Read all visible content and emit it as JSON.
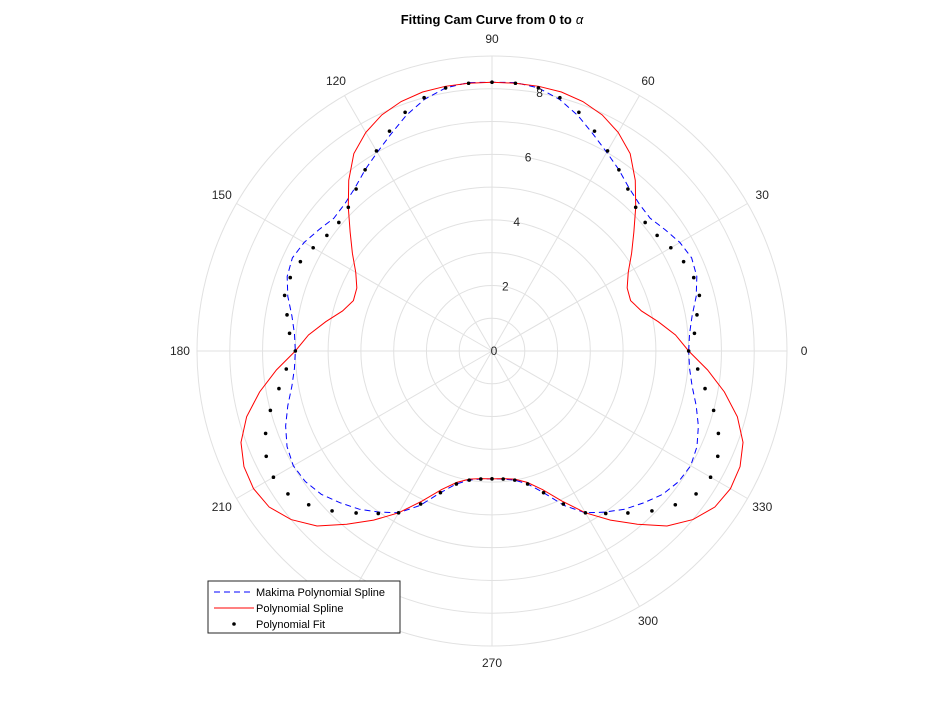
{
  "chart_data": {
    "type": "polar-line",
    "title": "Fitting Cam Curve from 0 to",
    "title_symbol": "α",
    "theta_ticks": [
      "0",
      "30",
      "60",
      "90",
      "120",
      "150",
      "180",
      "210",
      "240",
      "270",
      "300",
      "330"
    ],
    "r_ticks": [
      "0",
      "2",
      "4",
      "6",
      "8"
    ],
    "rlim": [
      0,
      9
    ],
    "theta_grid_step_deg": 30,
    "grid": true,
    "legend_position": "bottom-left",
    "control_points": [
      {
        "theta_deg": 0,
        "r": 6.0
      },
      {
        "theta_deg": 30,
        "r": 6.0
      },
      {
        "theta_deg": 60,
        "r": 6.0
      },
      {
        "theta_deg": 90,
        "r": 8.2
      },
      {
        "theta_deg": 120,
        "r": 6.0
      },
      {
        "theta_deg": 150,
        "r": 6.0
      },
      {
        "theta_deg": 180,
        "r": 6.0
      },
      {
        "theta_deg": 210,
        "r": 6.0
      },
      {
        "theta_deg": 240,
        "r": 6.0
      },
      {
        "theta_deg": 270,
        "r": 3.9
      },
      {
        "theta_deg": 300,
        "r": 6.0
      },
      {
        "theta_deg": 330,
        "r": 6.0
      }
    ],
    "series": [
      {
        "name": "Makima Polynomial Spline",
        "style": "dashed",
        "color": "#0000ff",
        "points": [
          [
            0,
            6.0
          ],
          [
            5,
            6.05
          ],
          [
            10,
            6.2
          ],
          [
            15,
            6.45
          ],
          [
            20,
            6.65
          ],
          [
            25,
            6.72
          ],
          [
            30,
            6.62
          ],
          [
            35,
            6.45
          ],
          [
            40,
            6.3
          ],
          [
            45,
            6.35
          ],
          [
            50,
            6.5
          ],
          [
            55,
            6.75
          ],
          [
            60,
            7.0
          ],
          [
            65,
            7.3
          ],
          [
            70,
            7.65
          ],
          [
            75,
            7.95
          ],
          [
            80,
            8.15
          ],
          [
            85,
            8.22
          ],
          [
            90,
            8.2
          ],
          [
            95,
            8.22
          ],
          [
            100,
            8.15
          ],
          [
            105,
            7.95
          ],
          [
            110,
            7.65
          ],
          [
            115,
            7.3
          ],
          [
            120,
            7.0
          ],
          [
            125,
            6.75
          ],
          [
            130,
            6.5
          ],
          [
            135,
            6.35
          ],
          [
            140,
            6.3
          ],
          [
            145,
            6.45
          ],
          [
            150,
            6.62
          ],
          [
            155,
            6.72
          ],
          [
            160,
            6.65
          ],
          [
            165,
            6.45
          ],
          [
            170,
            6.2
          ],
          [
            175,
            6.05
          ],
          [
            180,
            6.0
          ],
          [
            185,
            6.05
          ],
          [
            190,
            6.2
          ],
          [
            195,
            6.45
          ],
          [
            200,
            6.7
          ],
          [
            205,
            6.9
          ],
          [
            210,
            7.0
          ],
          [
            215,
            6.95
          ],
          [
            220,
            6.8
          ],
          [
            225,
            6.55
          ],
          [
            230,
            6.3
          ],
          [
            235,
            6.0
          ],
          [
            240,
            5.7
          ],
          [
            245,
            5.2
          ],
          [
            250,
            4.6
          ],
          [
            255,
            4.2
          ],
          [
            260,
            4.0
          ],
          [
            265,
            3.92
          ],
          [
            270,
            3.9
          ],
          [
            275,
            3.92
          ],
          [
            280,
            4.0
          ],
          [
            285,
            4.2
          ],
          [
            290,
            4.6
          ],
          [
            295,
            5.2
          ],
          [
            300,
            5.7
          ],
          [
            305,
            6.0
          ],
          [
            310,
            6.3
          ],
          [
            315,
            6.55
          ],
          [
            320,
            6.8
          ],
          [
            325,
            6.95
          ],
          [
            330,
            7.0
          ],
          [
            335,
            6.9
          ],
          [
            340,
            6.7
          ],
          [
            345,
            6.45
          ],
          [
            350,
            6.2
          ],
          [
            355,
            6.05
          ],
          [
            360,
            6.0
          ]
        ]
      },
      {
        "name": "Polynomial Spline",
        "style": "solid",
        "color": "#ff0000",
        "points": [
          [
            0,
            6.0
          ],
          [
            5,
            5.62
          ],
          [
            10,
            5.15
          ],
          [
            15,
            4.72
          ],
          [
            20,
            4.5
          ],
          [
            25,
            4.55
          ],
          [
            30,
            4.8
          ],
          [
            35,
            5.2
          ],
          [
            40,
            5.65
          ],
          [
            45,
            6.2
          ],
          [
            50,
            6.8
          ],
          [
            55,
            7.35
          ],
          [
            60,
            7.7
          ],
          [
            65,
            7.95
          ],
          [
            70,
            8.1
          ],
          [
            75,
            8.18
          ],
          [
            80,
            8.2
          ],
          [
            85,
            8.2
          ],
          [
            90,
            8.2
          ],
          [
            95,
            8.2
          ],
          [
            100,
            8.2
          ],
          [
            105,
            8.18
          ],
          [
            110,
            8.1
          ],
          [
            115,
            7.95
          ],
          [
            120,
            7.7
          ],
          [
            125,
            7.35
          ],
          [
            130,
            6.8
          ],
          [
            135,
            6.2
          ],
          [
            140,
            5.65
          ],
          [
            145,
            5.2
          ],
          [
            150,
            4.8
          ],
          [
            155,
            4.55
          ],
          [
            160,
            4.5
          ],
          [
            165,
            4.72
          ],
          [
            170,
            5.15
          ],
          [
            175,
            5.62
          ],
          [
            180,
            6.0
          ],
          [
            185,
            6.6
          ],
          [
            190,
            7.2
          ],
          [
            195,
            7.75
          ],
          [
            200,
            8.15
          ],
          [
            205,
            8.35
          ],
          [
            210,
            8.4
          ],
          [
            215,
            8.3
          ],
          [
            220,
            8.0
          ],
          [
            225,
            7.55
          ],
          [
            230,
            6.9
          ],
          [
            235,
            6.3
          ],
          [
            240,
            5.7
          ],
          [
            245,
            5.05
          ],
          [
            250,
            4.5
          ],
          [
            255,
            4.15
          ],
          [
            260,
            3.97
          ],
          [
            265,
            3.91
          ],
          [
            270,
            3.9
          ],
          [
            275,
            3.91
          ],
          [
            280,
            3.97
          ],
          [
            285,
            4.15
          ],
          [
            290,
            4.5
          ],
          [
            295,
            5.05
          ],
          [
            300,
            5.7
          ],
          [
            305,
            6.3
          ],
          [
            310,
            6.9
          ],
          [
            315,
            7.55
          ],
          [
            320,
            8.0
          ],
          [
            325,
            8.3
          ],
          [
            330,
            8.4
          ],
          [
            335,
            8.35
          ],
          [
            340,
            8.15
          ],
          [
            345,
            7.75
          ],
          [
            350,
            7.2
          ],
          [
            355,
            6.6
          ],
          [
            360,
            6.0
          ]
        ]
      },
      {
        "name": "Polynomial Fit",
        "style": "markers",
        "color": "#000000",
        "points": [
          [
            0,
            6.0
          ],
          [
            5,
            6.2
          ],
          [
            10,
            6.35
          ],
          [
            15,
            6.55
          ],
          [
            20,
            6.55
          ],
          [
            25,
            6.45
          ],
          [
            30,
            6.3
          ],
          [
            35,
            6.15
          ],
          [
            40,
            6.1
          ],
          [
            45,
            6.2
          ],
          [
            50,
            6.45
          ],
          [
            55,
            6.75
          ],
          [
            60,
            7.05
          ],
          [
            65,
            7.4
          ],
          [
            70,
            7.75
          ],
          [
            75,
            8.0
          ],
          [
            80,
            8.15
          ],
          [
            85,
            8.2
          ],
          [
            90,
            8.2
          ],
          [
            95,
            8.2
          ],
          [
            100,
            8.15
          ],
          [
            105,
            8.0
          ],
          [
            110,
            7.75
          ],
          [
            115,
            7.4
          ],
          [
            120,
            7.05
          ],
          [
            125,
            6.75
          ],
          [
            130,
            6.45
          ],
          [
            135,
            6.2
          ],
          [
            140,
            6.1
          ],
          [
            145,
            6.15
          ],
          [
            150,
            6.3
          ],
          [
            155,
            6.45
          ],
          [
            160,
            6.55
          ],
          [
            165,
            6.55
          ],
          [
            170,
            6.35
          ],
          [
            175,
            6.2
          ],
          [
            180,
            6.0
          ],
          [
            185,
            6.3
          ],
          [
            190,
            6.6
          ],
          [
            195,
            7.0
          ],
          [
            200,
            7.35
          ],
          [
            205,
            7.6
          ],
          [
            210,
            7.7
          ],
          [
            215,
            7.6
          ],
          [
            220,
            7.3
          ],
          [
            225,
            6.9
          ],
          [
            230,
            6.45
          ],
          [
            235,
            6.05
          ],
          [
            240,
            5.7
          ],
          [
            245,
            5.15
          ],
          [
            250,
            4.6
          ],
          [
            255,
            4.2
          ],
          [
            260,
            4.0
          ],
          [
            265,
            3.92
          ],
          [
            270,
            3.9
          ],
          [
            275,
            3.92
          ],
          [
            280,
            4.0
          ],
          [
            285,
            4.2
          ],
          [
            290,
            4.6
          ],
          [
            295,
            5.15
          ],
          [
            300,
            5.7
          ],
          [
            305,
            6.05
          ],
          [
            310,
            6.45
          ],
          [
            315,
            6.9
          ],
          [
            320,
            7.3
          ],
          [
            325,
            7.6
          ],
          [
            330,
            7.7
          ],
          [
            335,
            7.6
          ],
          [
            340,
            7.35
          ],
          [
            345,
            7.0
          ],
          [
            350,
            6.6
          ],
          [
            355,
            6.3
          ]
        ]
      }
    ]
  }
}
